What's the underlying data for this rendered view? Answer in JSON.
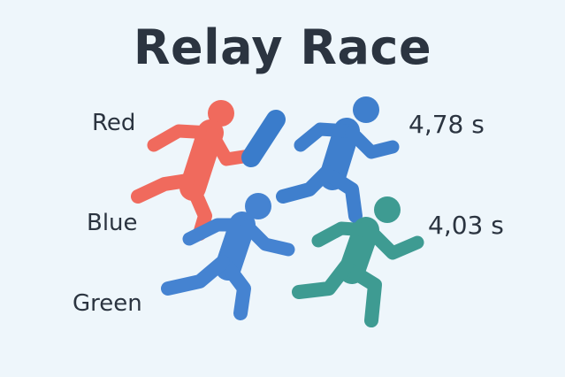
{
  "title": "Relay Race",
  "labels": {
    "red": "Red",
    "blue": "Blue",
    "green": "Green"
  },
  "times": [
    "4,78 s",
    "4,03 s"
  ],
  "colors": {
    "red": "#f06a5d",
    "blue_dark": "#3f7fcd",
    "blue": "#4583d1",
    "green": "#3e9b92",
    "baton": "#3a7ccb",
    "text": "#2b3440",
    "background": "#eef6fb"
  }
}
